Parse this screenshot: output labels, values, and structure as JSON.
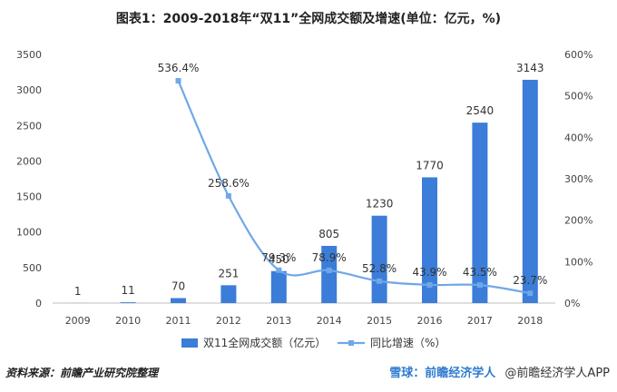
{
  "chart_data": {
    "type": "bar",
    "title": "图表1：2009-2018年“双11”全网成交额及增速(单位：亿元，%)",
    "categories": [
      "2009",
      "2010",
      "2011",
      "2012",
      "2013",
      "2014",
      "2015",
      "2016",
      "2017",
      "2018"
    ],
    "series": [
      {
        "name": "双11全网成交额（亿元）",
        "type": "bar",
        "axis": "left",
        "color": "#3b7dd8",
        "values": [
          1,
          11,
          70,
          251,
          450,
          805,
          1230,
          1770,
          2540,
          3143
        ],
        "labels": [
          "1",
          "11",
          "70",
          "251",
          "450",
          "805",
          "1230",
          "1770",
          "2540",
          "3143"
        ]
      },
      {
        "name": "同比增速（%）",
        "type": "line",
        "axis": "right",
        "color": "#6fa8e8",
        "values": [
          null,
          null,
          536.4,
          258.6,
          79.3,
          78.9,
          52.8,
          43.9,
          43.5,
          23.7
        ],
        "labels": [
          "",
          "",
          "536.4%",
          "258.6%",
          "79.3%",
          "78.9%",
          "52.8%",
          "43.9%",
          "43.5%",
          "23.7%"
        ]
      }
    ],
    "y_left": {
      "min": 0,
      "max": 3500,
      "ticks": [
        0,
        500,
        1000,
        1500,
        2000,
        2500,
        3000,
        3500
      ],
      "tick_labels": [
        "0",
        "500",
        "1000",
        "1500",
        "2000",
        "2500",
        "3000",
        "3500"
      ]
    },
    "y_right": {
      "min": 0,
      "max": 600,
      "ticks": [
        0,
        100,
        200,
        300,
        400,
        500,
        600
      ],
      "tick_labels": [
        "0%",
        "100%",
        "200%",
        "300%",
        "400%",
        "500%",
        "600%"
      ]
    },
    "grid": false,
    "legend": "bottom"
  },
  "footer": {
    "source": "资料来源：前瞻产业研究院整理",
    "brand": "雪球：前瞻经济学人",
    "app": "@前瞻经济学人APP"
  }
}
